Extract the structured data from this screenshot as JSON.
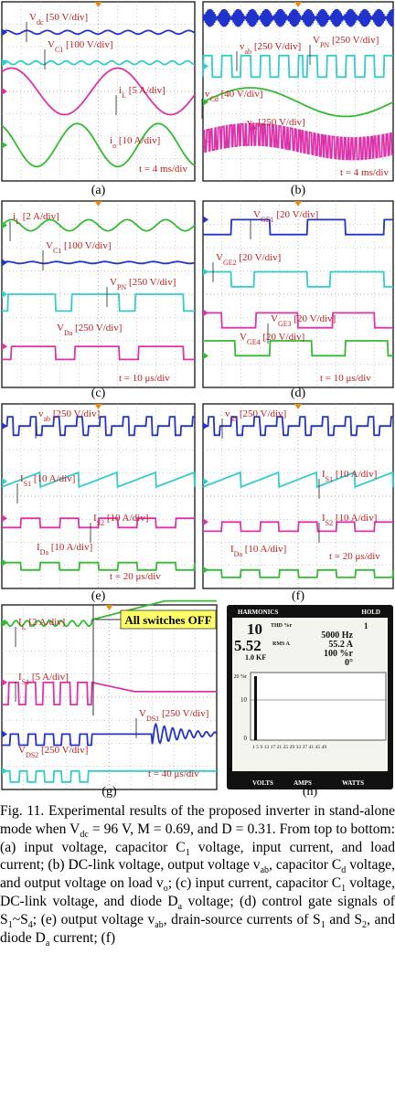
{
  "panels": [
    {
      "label": "(a)",
      "annotations": [
        {
          "runs": [
            {
              "t": "V"
            },
            {
              "t": "dc",
              "sub": true
            },
            {
              "t": " [50 V/div]"
            }
          ]
        },
        {
          "runs": [
            {
              "t": "V"
            },
            {
              "t": "C1",
              "sub": true
            },
            {
              "t": " [100 V/div]"
            }
          ]
        },
        {
          "runs": [
            {
              "t": "i"
            },
            {
              "t": "L",
              "sub": true
            },
            {
              "t": " [5 A/div]"
            }
          ]
        },
        {
          "runs": [
            {
              "t": "i"
            },
            {
              "t": "o",
              "sub": true
            },
            {
              "t": " [10 A/div]"
            }
          ]
        },
        {
          "runs": [
            {
              "t": "t = 4 ms/div"
            }
          ]
        }
      ]
    },
    {
      "label": "(b)",
      "annotations": [
        {
          "runs": [
            {
              "t": "v"
            },
            {
              "t": "ab",
              "sub": true
            },
            {
              "t": " [250 V/div]"
            }
          ]
        },
        {
          "runs": [
            {
              "t": "V"
            },
            {
              "t": "PN",
              "sub": true
            },
            {
              "t": " [250 V/div]"
            }
          ]
        },
        {
          "runs": [
            {
              "t": "v"
            },
            {
              "t": "Cd",
              "sub": true
            },
            {
              "t": " [40 V/div]"
            }
          ]
        },
        {
          "runs": [
            {
              "t": "v"
            },
            {
              "t": "o",
              "sub": true
            },
            {
              "t": " [250 V/div]"
            }
          ]
        },
        {
          "runs": [
            {
              "t": "t = 4 ms/div"
            }
          ]
        }
      ]
    },
    {
      "label": "(c)",
      "annotations": [
        {
          "runs": [
            {
              "t": "i"
            },
            {
              "t": "L",
              "sub": true
            },
            {
              "t": " [2 A/div]"
            }
          ]
        },
        {
          "runs": [
            {
              "t": "V"
            },
            {
              "t": "C1",
              "sub": true
            },
            {
              "t": " [100 V/div]"
            }
          ]
        },
        {
          "runs": [
            {
              "t": "V"
            },
            {
              "t": "PN",
              "sub": true
            },
            {
              "t": " [250 V/div]"
            }
          ]
        },
        {
          "runs": [
            {
              "t": "V"
            },
            {
              "t": "Da",
              "sub": true
            },
            {
              "t": " [250 V/div]"
            }
          ]
        },
        {
          "runs": [
            {
              "t": "t = 10 μs/div"
            }
          ]
        }
      ]
    },
    {
      "label": "(d)",
      "annotations": [
        {
          "runs": [
            {
              "t": "V"
            },
            {
              "t": "GE1",
              "sub": true
            },
            {
              "t": " [20 V/div]"
            }
          ]
        },
        {
          "runs": [
            {
              "t": "V"
            },
            {
              "t": "GE2",
              "sub": true
            },
            {
              "t": " [20 V/div]"
            }
          ]
        },
        {
          "runs": [
            {
              "t": "V"
            },
            {
              "t": "GE3",
              "sub": true
            },
            {
              "t": " [20 V/div]"
            }
          ]
        },
        {
          "runs": [
            {
              "t": "V"
            },
            {
              "t": "GE4",
              "sub": true
            },
            {
              "t": " [20 V/div]"
            }
          ]
        },
        {
          "runs": [
            {
              "t": "t = 10 μs/div"
            }
          ]
        }
      ]
    },
    {
      "label": "(e)",
      "annotations": [
        {
          "runs": [
            {
              "t": "v"
            },
            {
              "t": "ab",
              "sub": true
            },
            {
              "t": " [250 V/div]"
            }
          ]
        },
        {
          "runs": [
            {
              "t": "I"
            },
            {
              "t": "S1",
              "sub": true
            },
            {
              "t": " [10 A/div]"
            }
          ]
        },
        {
          "runs": [
            {
              "t": "I"
            },
            {
              "t": "S2",
              "sub": true
            },
            {
              "t": " [10 A/div]"
            }
          ]
        },
        {
          "runs": [
            {
              "t": "I"
            },
            {
              "t": "Da",
              "sub": true
            },
            {
              "t": " [10 A/div]"
            }
          ]
        },
        {
          "runs": [
            {
              "t": "t = 20 μs/div"
            }
          ]
        }
      ]
    },
    {
      "label": "(f)",
      "annotations": [
        {
          "runs": [
            {
              "t": "v"
            },
            {
              "t": "ab",
              "sub": true
            },
            {
              "t": " [250 V/div]"
            }
          ]
        },
        {
          "runs": [
            {
              "t": "I"
            },
            {
              "t": "S1",
              "sub": true
            },
            {
              "t": " [10 A/div]"
            }
          ]
        },
        {
          "runs": [
            {
              "t": "I"
            },
            {
              "t": "S2",
              "sub": true
            },
            {
              "t": " [10 A/div]"
            }
          ]
        },
        {
          "runs": [
            {
              "t": "I"
            },
            {
              "t": "Da",
              "sub": true
            },
            {
              "t": " [10 A/div]"
            }
          ]
        },
        {
          "runs": [
            {
              "t": "t = 20 μs/div"
            }
          ]
        }
      ]
    },
    {
      "label": "(g)",
      "callout": "All switches OFF",
      "annotations": [
        {
          "runs": [
            {
              "t": "I"
            },
            {
              "t": "L",
              "sub": true
            },
            {
              "t": " [2 A/div]"
            }
          ]
        },
        {
          "runs": [
            {
              "t": "I"
            },
            {
              "t": "S1",
              "sub": true
            },
            {
              "t": " [5 A/div]"
            }
          ]
        },
        {
          "runs": [
            {
              "t": "V"
            },
            {
              "t": "DS1",
              "sub": true
            },
            {
              "t": " [250 V/div]"
            }
          ]
        },
        {
          "runs": [
            {
              "t": "V"
            },
            {
              "t": "DS2",
              "sub": true
            },
            {
              "t": " [250 V/div]"
            }
          ]
        },
        {
          "runs": [
            {
              "t": "t = 40 μs/div"
            }
          ]
        }
      ]
    },
    {
      "label": "(h)",
      "meter": {
        "header": [
          "HARMONICS",
          "HOLD"
        ],
        "readings": [
          "10",
          "THD %r",
          "5.52",
          "RMS A",
          "1.0 KF",
          "1",
          "5000 Hz",
          "55.2 A",
          "100 %r",
          "0°"
        ],
        "y_axis": [
          "20 %r",
          "10",
          "0"
        ],
        "x_axis": "1  5  9 13 17 21 25 29 33 37 41 45 49",
        "buttons": [
          "VOLTS",
          "AMPS",
          "WATTS"
        ]
      }
    }
  ],
  "caption": [
    {
      "t": "Fig. 11. Experimental results of the proposed inverter in stand-alone mode when V"
    },
    {
      "t": "dc",
      "sub": true
    },
    {
      "t": " = 96 V, M = 0.69, and D = 0.31. From top to bottom: (a) input voltage, capacitor C"
    },
    {
      "t": "1",
      "sub": true
    },
    {
      "t": " voltage, input current, and load current; (b) DC-link voltage, output voltage v"
    },
    {
      "t": "ab",
      "sub": true
    },
    {
      "t": ", capacitor C"
    },
    {
      "t": "d",
      "sub": true
    },
    {
      "t": " voltage, and output voltage on load v"
    },
    {
      "t": "o",
      "sub": true
    },
    {
      "t": "; (c) input current, capacitor C"
    },
    {
      "t": "1",
      "sub": true
    },
    {
      "t": " voltage, DC-link voltage, and diode D"
    },
    {
      "t": "a",
      "sub": true
    },
    {
      "t": " voltage; (d) control gate signals of S"
    },
    {
      "t": "1",
      "sub": true
    },
    {
      "t": "~S"
    },
    {
      "t": "4",
      "sub": true
    },
    {
      "t": "; (e) output voltage v"
    },
    {
      "t": "ab",
      "sub": true
    },
    {
      "t": ", drain-source currents of S"
    },
    {
      "t": "1",
      "sub": true
    },
    {
      "t": " and S"
    },
    {
      "t": "2",
      "sub": true
    },
    {
      "t": ", and diode D"
    },
    {
      "t": "a",
      "sub": true
    },
    {
      "t": " current; (f)"
    }
  ]
}
